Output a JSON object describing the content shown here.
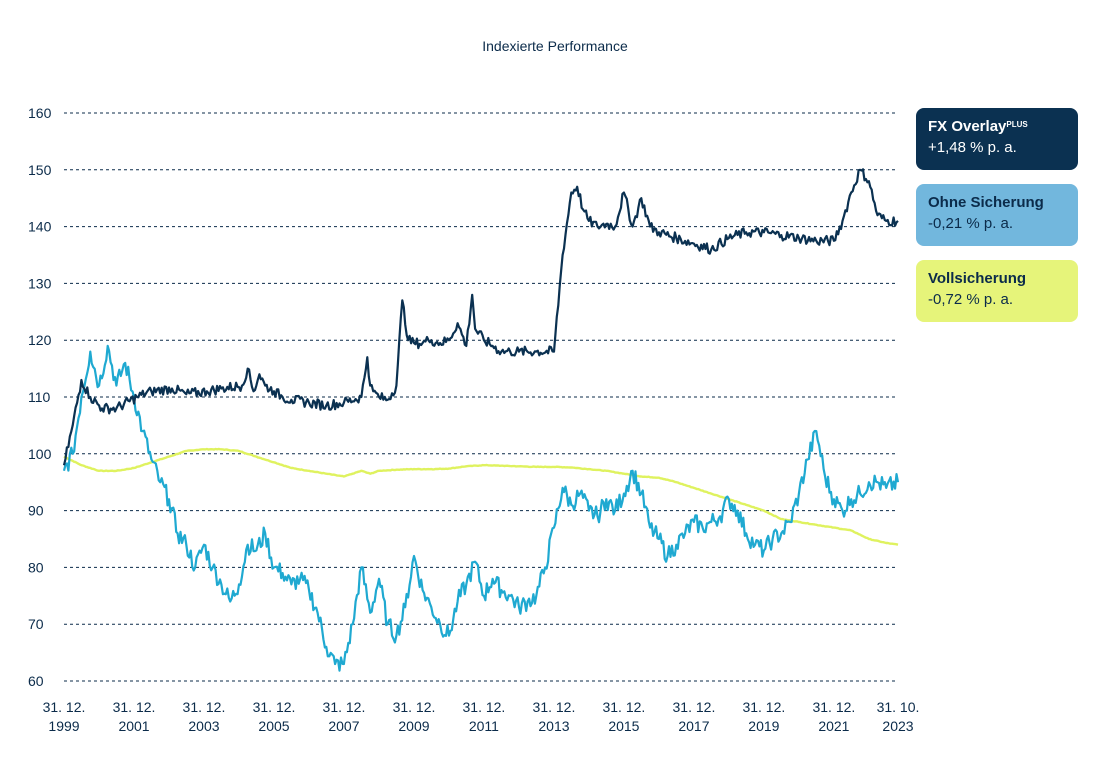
{
  "chart_data": {
    "type": "line",
    "title": "Indexierte Performance",
    "xlabel": "",
    "ylabel": "",
    "ylim": [
      60,
      160
    ],
    "yticks": [
      60,
      70,
      80,
      90,
      100,
      110,
      120,
      130,
      140,
      150,
      160
    ],
    "grid": true,
    "legend_position": "right",
    "xticks": [
      {
        "date": "1999-12-31",
        "line1": "31. 12.",
        "line2": "1999"
      },
      {
        "date": "2001-12-31",
        "line1": "31. 12.",
        "line2": "2001"
      },
      {
        "date": "2003-12-31",
        "line1": "31. 12.",
        "line2": "2003"
      },
      {
        "date": "2005-12-31",
        "line1": "31. 12.",
        "line2": "2005"
      },
      {
        "date": "2007-12-31",
        "line1": "31. 12.",
        "line2": "2007"
      },
      {
        "date": "2009-12-31",
        "line1": "31. 12.",
        "line2": "2009"
      },
      {
        "date": "2011-12-31",
        "line1": "31. 12.",
        "line2": "2011"
      },
      {
        "date": "2013-12-31",
        "line1": "31. 12.",
        "line2": "2013"
      },
      {
        "date": "2015-12-31",
        "line1": "31. 12.",
        "line2": "2015"
      },
      {
        "date": "2017-12-31",
        "line1": "31. 12.",
        "line2": "2017"
      },
      {
        "date": "2019-12-31",
        "line1": "31. 12.",
        "line2": "2019"
      },
      {
        "date": "2021-12-31",
        "line1": "31. 12.",
        "line2": "2021"
      },
      {
        "date": "2023-10-31",
        "line1": "31. 10.",
        "line2": "2023"
      }
    ],
    "series": [
      {
        "name": "FX Overlay",
        "name_sup": "PLUS",
        "performance": "+1,48 % p. a.",
        "color": "#0b3151",
        "x": [
          "1999-12-31",
          "2000-03-31",
          "2000-06-30",
          "2000-09-30",
          "2001-01-31",
          "2001-06-30",
          "2002-01-31",
          "2002-06-30",
          "2003-01-31",
          "2003-06-30",
          "2004-01-31",
          "2004-06-30",
          "2005-01-31",
          "2005-03-31",
          "2005-05-31",
          "2005-07-31",
          "2005-09-30",
          "2005-12-31",
          "2006-03-31",
          "2006-06-30",
          "2006-12-31",
          "2007-06-30",
          "2007-12-31",
          "2008-06-30",
          "2008-08-31",
          "2008-09-30",
          "2008-10-31",
          "2008-12-31",
          "2009-03-31",
          "2009-06-30",
          "2009-08-31",
          "2009-10-31",
          "2009-12-31",
          "2010-03-31",
          "2010-05-31",
          "2010-06-30",
          "2010-09-30",
          "2010-12-31",
          "2011-03-31",
          "2011-06-30",
          "2011-08-31",
          "2011-09-30",
          "2011-12-31",
          "2012-03-31",
          "2012-06-30",
          "2012-09-30",
          "2012-12-31",
          "2013-06-30",
          "2013-12-31",
          "2014-03-31",
          "2014-06-30",
          "2014-08-31",
          "2014-10-31",
          "2014-12-31",
          "2015-03-31",
          "2015-06-30",
          "2015-09-30",
          "2015-12-31",
          "2016-03-31",
          "2016-06-30",
          "2016-09-30",
          "2016-12-31",
          "2017-06-30",
          "2017-12-31",
          "2018-06-30",
          "2018-12-31",
          "2019-06-30",
          "2019-12-31",
          "2020-06-30",
          "2020-12-31",
          "2021-06-30",
          "2021-12-31",
          "2022-03-31",
          "2022-06-30",
          "2022-09-30",
          "2022-12-31",
          "2023-03-31",
          "2023-06-30",
          "2023-10-31"
        ],
        "values": [
          98,
          105,
          113,
          110,
          108,
          108,
          110,
          111,
          111.5,
          110.5,
          111,
          111.5,
          112,
          115,
          111,
          114,
          112,
          111,
          110,
          109.5,
          109,
          108.5,
          109,
          110,
          117,
          112,
          111,
          110,
          109.5,
          112,
          127,
          120,
          119.5,
          119.5,
          120,
          120,
          119.5,
          120,
          123,
          119,
          128,
          122,
          120,
          119,
          118,
          118,
          118,
          118,
          118,
          135,
          146,
          147,
          143,
          141,
          140,
          140.5,
          140,
          146,
          140,
          145,
          140,
          139,
          138,
          137,
          136,
          138,
          139,
          139,
          138.5,
          138,
          137.5,
          137.5,
          141,
          146,
          150,
          148,
          142,
          141,
          141
        ]
      },
      {
        "name": "Ohne Sicherung",
        "performance": "-0,21 % p. a.",
        "color": "#1fa9d1",
        "x": [
          "1999-12-31",
          "2000-03-31",
          "2000-06-30",
          "2000-09-30",
          "2000-12-31",
          "2001-03-31",
          "2001-06-30",
          "2001-09-30",
          "2001-12-31",
          "2002-03-31",
          "2002-06-30",
          "2002-09-30",
          "2002-12-31",
          "2003-03-31",
          "2003-06-30",
          "2003-09-30",
          "2003-12-31",
          "2004-03-31",
          "2004-06-30",
          "2004-09-30",
          "2004-12-31",
          "2005-03-31",
          "2005-06-30",
          "2005-09-30",
          "2005-12-31",
          "2006-03-31",
          "2006-06-30",
          "2006-09-30",
          "2006-12-31",
          "2007-03-31",
          "2007-06-30",
          "2007-09-30",
          "2007-12-31",
          "2008-03-31",
          "2008-06-30",
          "2008-09-30",
          "2008-12-31",
          "2009-03-31",
          "2009-06-30",
          "2009-09-30",
          "2009-12-31",
          "2010-03-31",
          "2010-06-30",
          "2010-09-30",
          "2010-12-31",
          "2011-03-31",
          "2011-06-30",
          "2011-09-30",
          "2011-12-31",
          "2012-03-31",
          "2012-06-30",
          "2012-09-30",
          "2012-12-31",
          "2013-03-31",
          "2013-06-30",
          "2013-09-30",
          "2013-12-31",
          "2014-03-31",
          "2014-06-30",
          "2014-09-30",
          "2014-12-31",
          "2015-03-31",
          "2015-06-30",
          "2015-09-30",
          "2015-12-31",
          "2016-03-31",
          "2016-06-30",
          "2016-09-30",
          "2016-12-31",
          "2017-03-31",
          "2017-06-30",
          "2017-09-30",
          "2017-12-31",
          "2018-03-31",
          "2018-06-30",
          "2018-09-30",
          "2018-12-31",
          "2019-03-31",
          "2019-06-30",
          "2019-09-30",
          "2019-12-31",
          "2020-03-31",
          "2020-06-30",
          "2020-09-30",
          "2020-12-31",
          "2021-03-31",
          "2021-06-30",
          "2021-09-30",
          "2021-12-31",
          "2022-03-31",
          "2022-06-30",
          "2022-09-30",
          "2022-12-31",
          "2023-03-31",
          "2023-06-30",
          "2023-10-31"
        ],
        "values": [
          97,
          100,
          110,
          118,
          112,
          119,
          112,
          116,
          110,
          104,
          99,
          95,
          92,
          86,
          84,
          80,
          84,
          80,
          77,
          74,
          77,
          84,
          83,
          86,
          80,
          79,
          77,
          78,
          76,
          72,
          66,
          63,
          63,
          70,
          80,
          72,
          78,
          70,
          68,
          73,
          82,
          76,
          73,
          70,
          68,
          74,
          77,
          81,
          75,
          78,
          76,
          75,
          73,
          74,
          75,
          80,
          87,
          94,
          91,
          93,
          90,
          89,
          92,
          90,
          93,
          97,
          93,
          87,
          85,
          82,
          84,
          86,
          88,
          87,
          88,
          89,
          92,
          90,
          86,
          84,
          83,
          85,
          86,
          88,
          93,
          99,
          104,
          96,
          92,
          90,
          92,
          93,
          95,
          95,
          94,
          95
        ]
      },
      {
        "name": "Vollsicherung",
        "performance": "-0,72 % p. a.",
        "color": "#dff25f",
        "x": [
          "1999-12-31",
          "2000-06-30",
          "2000-12-31",
          "2001-06-30",
          "2001-12-31",
          "2002-06-30",
          "2002-12-31",
          "2003-06-30",
          "2003-12-31",
          "2004-06-30",
          "2004-12-31",
          "2005-06-30",
          "2005-12-31",
          "2006-06-30",
          "2006-12-31",
          "2007-06-30",
          "2007-12-31",
          "2008-03-31",
          "2008-06-30",
          "2008-09-30",
          "2008-12-31",
          "2009-06-30",
          "2009-12-31",
          "2010-06-30",
          "2010-12-31",
          "2011-06-30",
          "2011-12-31",
          "2012-06-30",
          "2012-12-31",
          "2013-06-30",
          "2013-12-31",
          "2014-06-30",
          "2014-12-31",
          "2015-06-30",
          "2015-12-31",
          "2016-06-30",
          "2016-12-31",
          "2017-06-30",
          "2017-12-31",
          "2018-06-30",
          "2018-12-31",
          "2019-06-30",
          "2019-12-31",
          "2020-06-30",
          "2020-12-31",
          "2021-06-30",
          "2021-12-31",
          "2022-06-30",
          "2022-12-31",
          "2023-06-30",
          "2023-10-31"
        ],
        "values": [
          99.5,
          98,
          97,
          97,
          97.5,
          98.5,
          99.5,
          100.5,
          100.8,
          100.8,
          100.5,
          99.5,
          98.5,
          97.5,
          97,
          96.5,
          96,
          96.5,
          97,
          96.5,
          97,
          97.2,
          97.3,
          97.3,
          97.4,
          97.8,
          98,
          97.9,
          97.8,
          97.7,
          97.7,
          97.6,
          97.3,
          97,
          96.5,
          96,
          95.8,
          95,
          94,
          93,
          92,
          91,
          90,
          88.5,
          88,
          87.5,
          87,
          86.5,
          85,
          84.3,
          84
        ]
      }
    ]
  }
}
